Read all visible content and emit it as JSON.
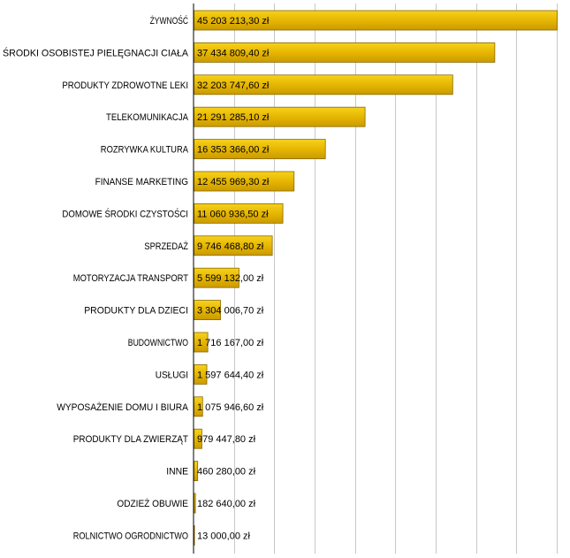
{
  "chart_data": {
    "type": "bar",
    "orientation": "horizontal",
    "title": "",
    "xlabel": "",
    "ylabel": "",
    "xlim": [
      0,
      45203213.3
    ],
    "grid": true,
    "legend": "none",
    "bar_color": "#E8B800",
    "bar_edge_color": "#8A6A00",
    "gridline_color": "#C8C8C8",
    "categories": [
      "ŻYWNOŚĆ",
      "ŚRODKI OSOBISTEJ PIELĘGNACJI CIAŁA",
      "PRODUKTY ZDROWOTNE LEKI",
      "TELEKOMUNIKACJA",
      "ROZRYWKA KULTURA",
      "FINANSE MARKETING",
      "DOMOWE ŚRODKI CZYSTOŚCI",
      "SPRZEDAŻ",
      "MOTORYZACJA TRANSPORT",
      "PRODUKTY DLA DZIECI",
      "BUDOWNICTWO",
      "USŁUGI",
      "WYPOSAŻENIE DOMU I BIURA",
      "PRODUKTY DLA ZWIERZĄT",
      "INNE",
      "ODZIEŻ OBUWIE",
      "ROLNICTWO OGRODNICTWO"
    ],
    "values": [
      45203213.3,
      37434809.4,
      32203747.6,
      21291285.1,
      16353366.0,
      12455969.3,
      11060936.5,
      9746468.8,
      5599132.0,
      3304006.7,
      1716167.0,
      1597644.4,
      1075946.6,
      979447.8,
      460280.0,
      182640.0,
      13000.0
    ],
    "value_labels": [
      "45 203 213,30 zł",
      "37 434 809,40 zł",
      "32 203 747,60 zł",
      "21 291 285,10 zł",
      "16 353 366,00 zł",
      "12 455 969,30 zł",
      "11 060 936,50 zł",
      "9 746 468,80 zł",
      "5 599 132,00 zł",
      "3 304 006,70 zł",
      "1 716 167,00 zł",
      "1 597 644,40 zł",
      "1 075 946,60 zł",
      "979 447,80 zł",
      "460 280,00 zł",
      "182 640,00 zł",
      "13 000,00 zł"
    ]
  }
}
